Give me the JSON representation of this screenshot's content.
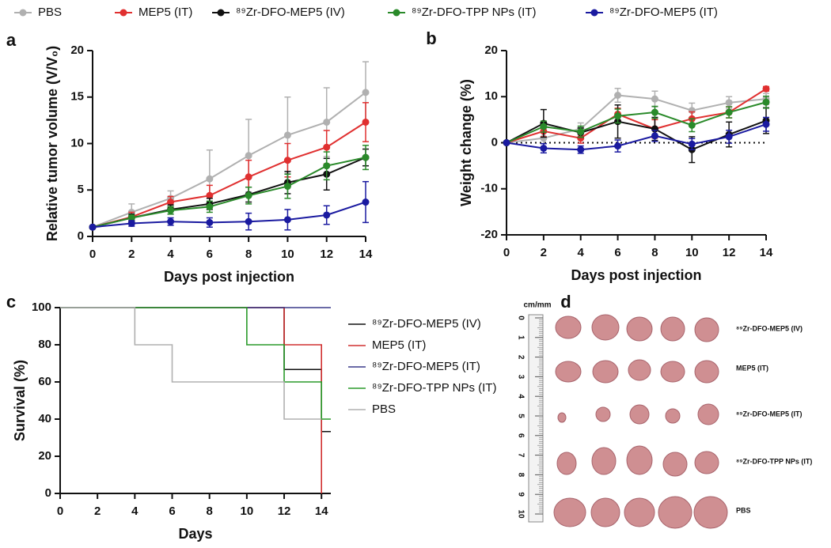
{
  "chart_data": [
    {
      "type": "line",
      "panel": "a",
      "xlabel": "Days post injection",
      "ylabel": "Relative tumor volume (V/V₀)",
      "x": [
        0,
        2,
        4,
        6,
        8,
        10,
        12,
        14
      ],
      "xlim": [
        0,
        14
      ],
      "xticks": [
        0,
        2,
        4,
        6,
        8,
        10,
        12,
        14
      ],
      "ylim": [
        0,
        20
      ],
      "yticks": [
        0,
        5,
        10,
        15,
        20
      ],
      "legend": "top",
      "series": [
        {
          "name": "PBS",
          "color": "#b0b0b0",
          "values": [
            1,
            2.6,
            4.1,
            6.2,
            8.7,
            10.9,
            12.3,
            15.5
          ],
          "errors": [
            0,
            0.9,
            0.8,
            3.1,
            3.9,
            4.1,
            3.7,
            3.3
          ]
        },
        {
          "name": "MEP5 (IT)",
          "color": "#e03030",
          "values": [
            1,
            2.1,
            3.7,
            4.4,
            6.4,
            8.2,
            9.6,
            12.3
          ],
          "errors": [
            0,
            0.5,
            0.6,
            1.1,
            1.8,
            1.8,
            1.8,
            2.1
          ]
        },
        {
          "name": "⁸⁹Zr-DFO-MEP5 (IV)",
          "color": "#111111",
          "values": [
            1,
            2.0,
            2.9,
            3.5,
            4.5,
            5.8,
            6.7,
            8.5
          ],
          "errors": [
            0,
            0.4,
            0.5,
            0.6,
            0.8,
            1.2,
            1.7,
            0.9
          ]
        },
        {
          "name": "⁸⁹Zr-DFO-TPP NPs (IT)",
          "color": "#2a8a2a",
          "values": [
            1,
            2.0,
            2.8,
            3.2,
            4.4,
            5.4,
            7.6,
            8.5
          ],
          "errors": [
            0,
            0.3,
            0.4,
            0.6,
            0.9,
            1.3,
            1.5,
            1.3
          ]
        },
        {
          "name": "⁸⁹Zr-DFO-MEP5 (IT)",
          "color": "#1a1aa0",
          "values": [
            1,
            1.4,
            1.6,
            1.5,
            1.6,
            1.8,
            2.3,
            3.7
          ],
          "errors": [
            0,
            0.3,
            0.4,
            0.5,
            0.9,
            1.1,
            1.0,
            2.2
          ]
        }
      ]
    },
    {
      "type": "line",
      "panel": "b",
      "xlabel": "Days post injection",
      "ylabel": "Weight change (%)",
      "x": [
        0,
        2,
        4,
        6,
        8,
        10,
        12,
        14
      ],
      "xlim": [
        0,
        14
      ],
      "xticks": [
        0,
        2,
        4,
        6,
        8,
        10,
        12,
        14
      ],
      "ylim": [
        -20,
        20
      ],
      "yticks": [
        -20,
        -10,
        0,
        10,
        20
      ],
      "zero_line": true,
      "series": [
        {
          "name": "PBS",
          "color": "#b0b0b0",
          "values": [
            0,
            1,
            3,
            10.3,
            9.5,
            7,
            8.7,
            9.5
          ],
          "errors": [
            0,
            1.2,
            1.3,
            1.5,
            1.7,
            1.6,
            1.3,
            1.2
          ]
        },
        {
          "name": "MEP5 (IT)",
          "color": "#e03030",
          "values": [
            0,
            2.5,
            1,
            6.2,
            3,
            5.2,
            6.6,
            11.7
          ],
          "errors": [
            0,
            1.2,
            1.1,
            1.3,
            2.0,
            1.5,
            1.2,
            0.5
          ]
        },
        {
          "name": "⁸⁹Zr-DFO-MEP5 (IV)",
          "color": "#111111",
          "values": [
            0,
            4.2,
            2.2,
            4.6,
            3,
            -1.5,
            1.8,
            4.8
          ],
          "errors": [
            0,
            3.0,
            1.0,
            3.6,
            2.5,
            2.8,
            2.7,
            2.8
          ]
        },
        {
          "name": "⁸⁹Zr-DFO-TPP NPs (IT)",
          "color": "#2a8a2a",
          "values": [
            0,
            3.5,
            2.4,
            5.8,
            6.6,
            3.8,
            6.6,
            8.8
          ],
          "errors": [
            0,
            1.2,
            1.2,
            1.5,
            1.3,
            1.4,
            1.2,
            1.3
          ]
        },
        {
          "name": "⁸⁹Zr-DFO-MEP5 (IT)",
          "color": "#1a1aa0",
          "values": [
            0,
            -1.2,
            -1.5,
            -0.7,
            1.5,
            -0.3,
            1.3,
            4.0
          ],
          "errors": [
            0,
            1.0,
            0.8,
            1.3,
            1.2,
            1.2,
            1.4,
            1.5
          ]
        }
      ]
    },
    {
      "type": "step",
      "panel": "c",
      "xlabel": "Days",
      "ylabel": "Survival (%)",
      "xlim": [
        0,
        14.5
      ],
      "xticks": [
        0,
        2,
        4,
        6,
        8,
        10,
        12,
        14
      ],
      "ylim": [
        0,
        100
      ],
      "yticks": [
        0,
        20,
        40,
        60,
        80,
        100
      ],
      "legend": "right",
      "series": [
        {
          "name": "⁸⁹Zr-DFO-MEP5 (IV)",
          "color": "#111111",
          "x": [
            0,
            12,
            14,
            14.5
          ],
          "values": [
            100,
            66.7,
            33.3,
            33.3
          ]
        },
        {
          "name": "MEP5 (IT)",
          "color": "#d03030",
          "x": [
            0,
            12,
            14
          ],
          "values": [
            100,
            80,
            0
          ]
        },
        {
          "name": "⁸⁹Zr-DFO-MEP5 (IT)",
          "color": "#3a3a8a",
          "x": [
            0,
            14.5
          ],
          "values": [
            100,
            100
          ]
        },
        {
          "name": "⁸⁹Zr-DFO-TPP NPs (IT)",
          "color": "#2a9a2a",
          "x": [
            0,
            10,
            12,
            14,
            14.5
          ],
          "values": [
            100,
            80,
            60,
            40,
            40
          ]
        },
        {
          "name": "PBS",
          "color": "#b0b0b0",
          "x": [
            0,
            4,
            6,
            12,
            14
          ],
          "values": [
            100,
            80,
            60,
            40,
            40
          ]
        }
      ]
    }
  ],
  "photo": {
    "panel": "d",
    "unit": "cm/mm",
    "ruler_ticks": [
      0,
      1,
      2,
      3,
      4,
      5,
      6,
      7,
      8,
      9,
      10
    ],
    "rows": [
      "⁸⁹Zr-DFO-MEP5 (IV)",
      "MEP5 (IT)",
      "⁸⁹Zr-DFO-MEP5 (IT)",
      "⁸⁹Zr-DFO-TPP NPs (IT)",
      "PBS"
    ]
  }
}
